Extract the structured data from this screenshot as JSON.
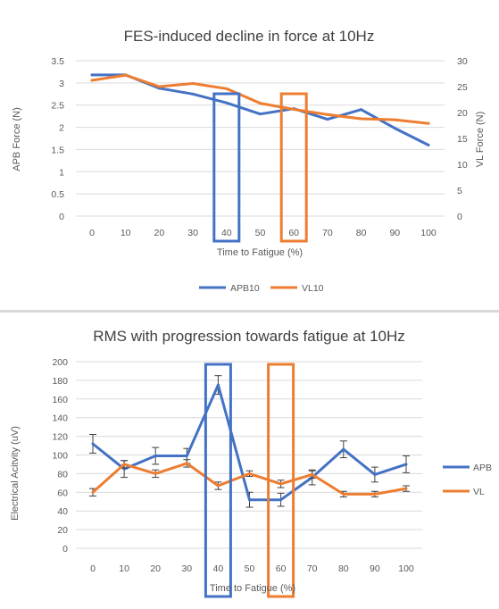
{
  "colors": {
    "blue": "#4472c4",
    "orange": "#ed7d31",
    "grid": "#d9d9d9",
    "text": "#595959"
  },
  "chart_data": [
    {
      "type": "line",
      "title": "FES-induced decline in force at 10Hz",
      "xlabel": "Time to Fatigue (%)",
      "ylabel": "APB Force (N)",
      "y2label": "VL Force (N)",
      "categories": [
        "0",
        "10",
        "20",
        "30",
        "40",
        "50",
        "60",
        "70",
        "80",
        "90",
        "100"
      ],
      "ylim": [
        0,
        3.5
      ],
      "yticks": [
        "0",
        "0.5",
        "1",
        "1.5",
        "2",
        "2.5",
        "3",
        "3.5"
      ],
      "y2lim": [
        0,
        30
      ],
      "y2ticks": [
        "0",
        "5",
        "10",
        "15",
        "20",
        "25",
        "30"
      ],
      "grid": true,
      "legend_position": "bottom",
      "series": [
        {
          "name": "APB10",
          "axis": "left",
          "color": "#4472c4",
          "values": [
            3.18,
            3.18,
            2.88,
            2.75,
            2.55,
            2.3,
            2.42,
            2.18,
            2.4,
            1.98,
            1.6
          ]
        },
        {
          "name": "VL10",
          "axis": "right",
          "color": "#ed7d31",
          "values": [
            26.2,
            27.2,
            25.0,
            25.6,
            24.6,
            21.8,
            20.6,
            19.6,
            18.8,
            18.6,
            17.9
          ]
        }
      ],
      "highlights": [
        {
          "category": "40",
          "color": "#4472c4"
        },
        {
          "category": "60",
          "color": "#ed7d31"
        }
      ]
    },
    {
      "type": "line",
      "title": "RMS with progression towards fatigue at 10Hz",
      "xlabel": "Time to Fatigue (%)",
      "ylabel": "Electrical Acitvity (uV)",
      "categories": [
        "0",
        "10",
        "20",
        "30",
        "40",
        "50",
        "60",
        "70",
        "80",
        "90",
        "100"
      ],
      "ylim": [
        0,
        200
      ],
      "yticks": [
        "0",
        "20",
        "40",
        "60",
        "80",
        "100",
        "120",
        "140",
        "160",
        "180",
        "200"
      ],
      "grid": true,
      "legend_position": "right",
      "series": [
        {
          "name": "APB",
          "color": "#4472c4",
          "values": [
            112,
            85,
            99,
            99,
            175,
            52,
            52,
            76,
            106,
            79,
            90
          ],
          "errors": [
            10,
            9,
            9,
            8,
            10,
            8,
            7,
            8,
            9,
            8,
            9
          ]
        },
        {
          "name": "VL",
          "color": "#ed7d31",
          "values": [
            60,
            90,
            80,
            91,
            67,
            80,
            69,
            79,
            58,
            58,
            64
          ],
          "errors": [
            4,
            4,
            4,
            4,
            4,
            3,
            4,
            4,
            3,
            3,
            3
          ]
        }
      ],
      "highlights": [
        {
          "category": "40",
          "color": "#4472c4"
        },
        {
          "category": "60",
          "color": "#ed7d31"
        }
      ]
    }
  ]
}
